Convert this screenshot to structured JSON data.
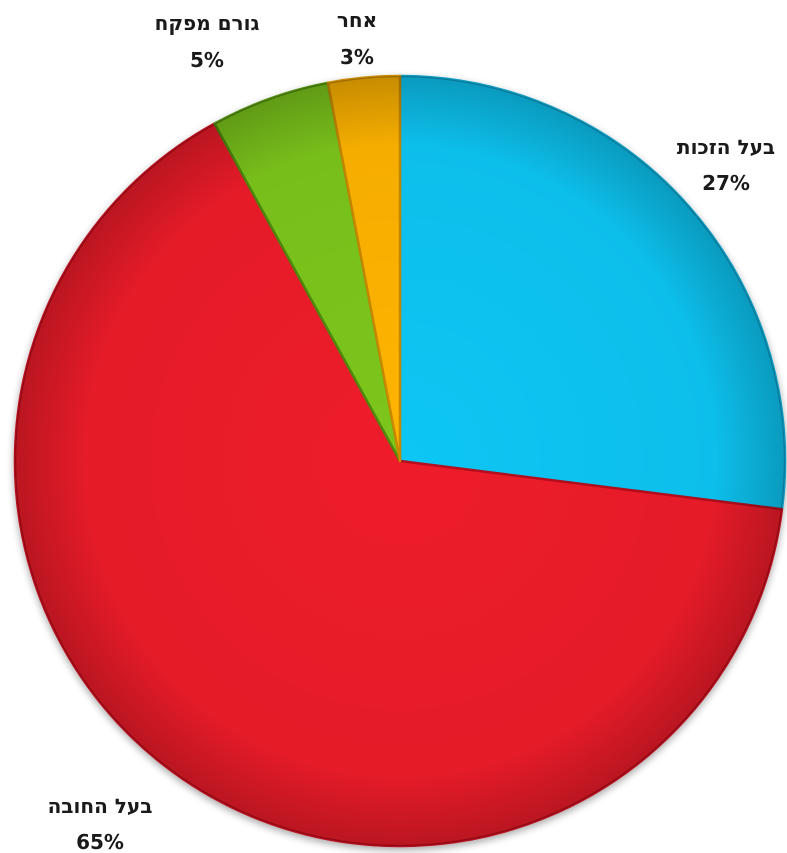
{
  "chart_data": {
    "type": "pie",
    "categories": [
      "בעל הזכות",
      "בעל החובה",
      "גורם מפקח",
      "אחר"
    ],
    "values": [
      27,
      65,
      5,
      3
    ],
    "value_labels": [
      "27%",
      "65%",
      "5%",
      "3%"
    ],
    "colors": [
      "#0ec6f4",
      "#ee1b2b",
      "#7bc61a",
      "#ffb400"
    ],
    "edge_colors": [
      "#079ac0",
      "#b80e1c",
      "#4f8a0c",
      "#c98a00"
    ],
    "start": "12 o'clock",
    "direction": "clockwise"
  }
}
